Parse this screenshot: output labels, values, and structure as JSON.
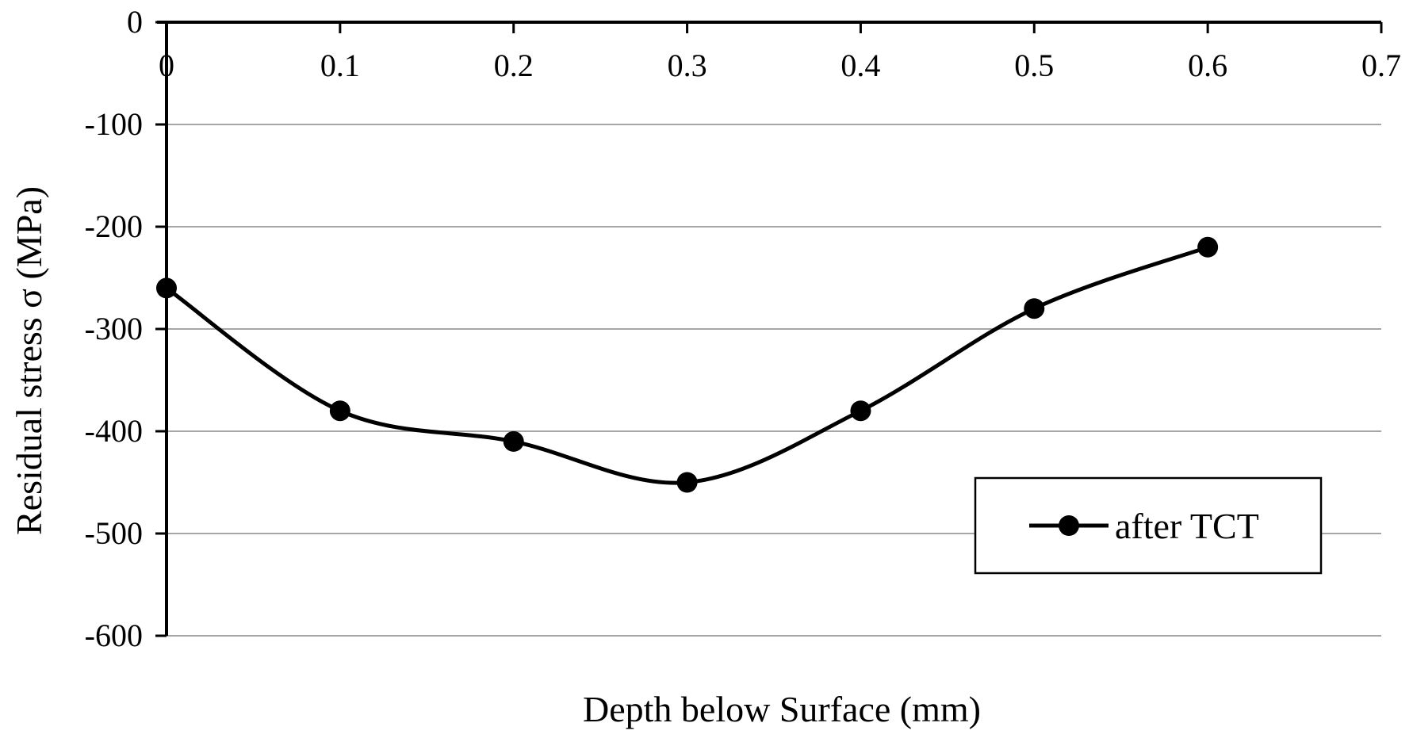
{
  "chart_data": {
    "type": "line",
    "title": "",
    "xlabel": "Depth below Surface (mm)",
    "ylabel": "Residual stress σ (MPa)",
    "xlim": [
      0,
      0.7
    ],
    "ylim": [
      -600,
      0
    ],
    "x_ticks": [
      "0",
      "0.1",
      "0.2",
      "0.3",
      "0.4",
      "0.5",
      "0.6",
      "0.7"
    ],
    "y_ticks": [
      "0",
      "-100",
      "-200",
      "-300",
      "-400",
      "-500",
      "-600"
    ],
    "x_axis_position": "top",
    "grid": "horizontal",
    "legend_position": "lower-right",
    "smooth": true,
    "series": [
      {
        "name": "after TCT",
        "x": [
          0,
          0.1,
          0.2,
          0.3,
          0.4,
          0.5,
          0.6
        ],
        "values": [
          -260,
          -380,
          -410,
          -450,
          -380,
          -280,
          -220
        ],
        "color": "#000000",
        "marker": "circle"
      }
    ]
  },
  "colors": {
    "series_line": "#000000",
    "gridline": "#a6a6a6",
    "axis": "#000000",
    "background": "#ffffff"
  }
}
